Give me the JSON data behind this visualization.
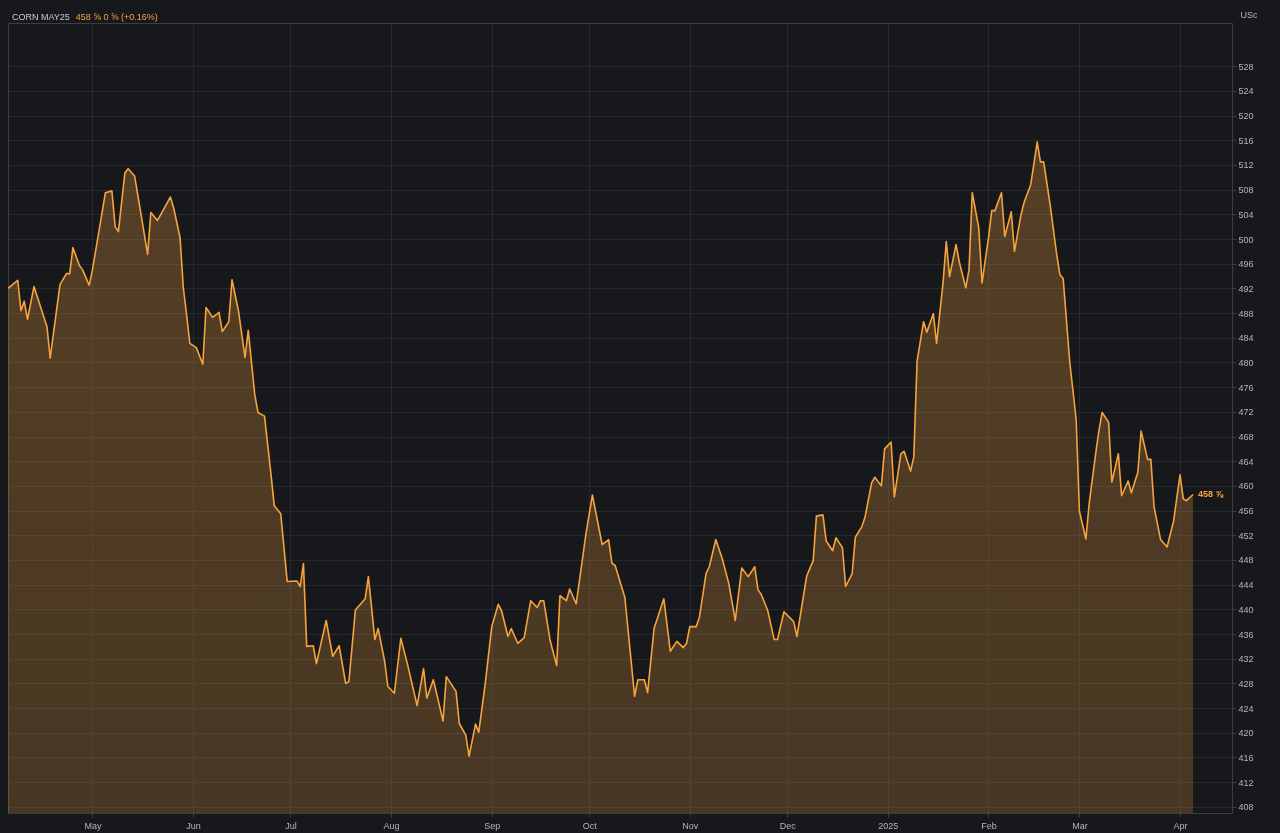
{
  "chart_data": {
    "type": "area",
    "title": "CORN MAY25",
    "subtitle": "458 ⅝ 0 ⅝ (+0.16%)",
    "ylabel": "USc",
    "x": [
      "2024-04-05",
      "2024-04-08",
      "2024-04-09",
      "2024-04-10",
      "2024-04-11",
      "2024-04-13",
      "2024-04-17",
      "2024-04-18",
      "2024-04-21",
      "2024-04-23",
      "2024-04-24",
      "2024-04-25",
      "2024-04-27",
      "2024-04-28",
      "2024-04-30",
      "2024-05-01",
      "2024-05-03",
      "2024-05-05",
      "2024-05-07",
      "2024-05-08",
      "2024-05-09",
      "2024-05-11",
      "2024-05-12",
      "2024-05-14",
      "2024-05-16",
      "2024-05-18",
      "2024-05-19",
      "2024-05-21",
      "2024-05-22",
      "2024-05-25",
      "2024-05-26",
      "2024-05-28",
      "2024-05-29",
      "2024-05-30",
      "2024-05-31",
      "2024-06-02",
      "2024-06-04",
      "2024-06-05",
      "2024-06-07",
      "2024-06-09",
      "2024-06-10",
      "2024-06-12",
      "2024-06-13",
      "2024-06-15",
      "2024-06-17",
      "2024-06-18",
      "2024-06-20",
      "2024-06-21",
      "2024-06-23",
      "2024-06-25",
      "2024-06-26",
      "2024-06-28",
      "2024-06-30",
      "2024-07-03",
      "2024-07-04",
      "2024-07-05",
      "2024-07-06",
      "2024-07-08",
      "2024-07-09",
      "2024-07-12",
      "2024-07-14",
      "2024-07-16",
      "2024-07-18",
      "2024-07-19",
      "2024-07-21",
      "2024-07-24",
      "2024-07-25",
      "2024-07-27",
      "2024-07-28",
      "2024-07-30",
      "2024-07-31",
      "2024-08-02",
      "2024-08-04",
      "2024-08-06",
      "2024-08-09",
      "2024-08-11",
      "2024-08-12",
      "2024-08-14",
      "2024-08-15",
      "2024-08-17",
      "2024-08-18",
      "2024-08-21",
      "2024-08-22",
      "2024-08-24",
      "2024-08-25",
      "2024-08-27",
      "2024-08-28",
      "2024-08-30",
      "2024-09-01",
      "2024-09-03",
      "2024-09-04",
      "2024-09-06",
      "2024-09-07",
      "2024-09-09",
      "2024-09-11",
      "2024-09-13",
      "2024-09-15",
      "2024-09-16",
      "2024-09-17",
      "2024-09-19",
      "2024-09-21",
      "2024-09-22",
      "2024-09-24",
      "2024-09-25",
      "2024-09-27",
      "2024-09-28",
      "2024-09-30",
      "2024-10-02",
      "2024-10-05",
      "2024-10-07",
      "2024-10-08",
      "2024-10-09",
      "2024-10-12",
      "2024-10-15",
      "2024-10-16",
      "2024-10-18",
      "2024-10-19",
      "2024-10-21",
      "2024-10-24",
      "2024-10-26",
      "2024-10-28",
      "2024-10-30",
      "2024-10-31",
      "2024-11-01",
      "2024-11-03",
      "2024-11-04",
      "2024-11-06",
      "2024-11-07",
      "2024-11-09",
      "2024-11-11",
      "2024-11-13",
      "2024-11-15",
      "2024-11-17",
      "2024-11-19",
      "2024-11-21",
      "2024-11-22",
      "2024-11-23",
      "2024-11-25",
      "2024-11-27",
      "2024-11-28",
      "2024-11-30",
      "2024-12-03",
      "2024-12-04",
      "2024-12-07",
      "2024-12-09",
      "2024-12-10",
      "2024-12-12",
      "2024-12-13",
      "2024-12-15",
      "2024-12-16",
      "2024-12-18",
      "2024-12-19",
      "2024-12-21",
      "2024-12-22",
      "2024-12-24",
      "2024-12-25",
      "2024-12-27",
      "2024-12-28",
      "2024-12-30",
      "2024-12-31",
      "2025-01-02",
      "2025-01-03",
      "2025-01-05",
      "2025-01-06",
      "2025-01-08",
      "2025-01-09",
      "2025-01-10",
      "2025-01-12",
      "2025-01-13",
      "2025-01-15",
      "2025-01-16",
      "2025-01-18",
      "2025-01-19",
      "2025-01-20",
      "2025-01-22",
      "2025-01-23",
      "2025-01-25",
      "2025-01-26",
      "2025-01-27",
      "2025-01-29",
      "2025-01-30",
      "2025-02-01",
      "2025-02-02",
      "2025-02-03",
      "2025-02-05",
      "2025-02-06",
      "2025-02-08",
      "2025-02-09",
      "2025-02-11",
      "2025-02-12",
      "2025-02-14",
      "2025-02-16",
      "2025-02-17",
      "2025-02-18",
      "2025-02-20",
      "2025-02-22",
      "2025-02-23",
      "2025-02-24",
      "2025-02-26",
      "2025-02-28",
      "2025-03-01",
      "2025-03-03",
      "2025-03-04",
      "2025-03-06",
      "2025-03-07",
      "2025-03-08",
      "2025-03-10",
      "2025-03-11",
      "2025-03-13",
      "2025-03-14",
      "2025-03-16",
      "2025-03-17",
      "2025-03-19",
      "2025-03-20",
      "2025-03-22",
      "2025-03-23",
      "2025-03-24",
      "2025-03-26",
      "2025-03-28",
      "2025-03-30",
      "2025-04-01",
      "2025-04-02",
      "2025-04-03",
      "2025-04-05"
    ],
    "series": [
      {
        "color": "#f7a33c",
        "values": [
          492.0,
          493.3,
          488.4,
          489.9,
          487.0,
          492.3,
          485.8,
          480.7,
          492.6,
          494.4,
          494.4,
          498.6,
          495.7,
          495.0,
          492.5,
          495.0,
          501.2,
          507.5,
          507.8,
          502.0,
          501.2,
          510.7,
          511.4,
          510.2,
          503.9,
          497.5,
          504.3,
          503.0,
          503.9,
          506.8,
          505.1,
          500.2,
          492.1,
          487.8,
          483.1,
          482.4,
          479.7,
          488.9,
          487.3,
          488.1,
          485.0,
          486.6,
          493.4,
          488.3,
          480.8,
          485.2,
          474.8,
          471.9,
          471.3,
          461.9,
          456.8,
          455.5,
          444.5,
          444.6,
          443.7,
          447.4,
          434.0,
          434.1,
          431.2,
          438.2,
          432.4,
          434.1,
          428.0,
          428.3,
          439.9,
          441.7,
          445.3,
          435.1,
          436.9,
          431.6,
          427.5,
          426.4,
          435.3,
          431.2,
          424.4,
          430.4,
          425.6,
          428.6,
          426.4,
          421.9,
          429.1,
          426.7,
          421.5,
          419.6,
          416.2,
          421.4,
          420.1,
          428.0,
          437.2,
          440.8,
          439.8,
          435.6,
          436.9,
          434.5,
          435.4,
          441.4,
          440.3,
          441.4,
          441.4,
          434.9,
          430.9,
          442.2,
          441.4,
          443.3,
          440.9,
          444.6,
          452.2,
          458.5,
          450.5,
          451.3,
          447.5,
          447.1,
          441.9,
          425.9,
          428.6,
          428.6,
          426.5,
          436.9,
          441.7,
          433.2,
          434.8,
          433.8,
          434.5,
          437.2,
          437.2,
          438.8,
          445.8,
          446.9,
          451.3,
          448.2,
          444.2,
          438.2,
          446.7,
          445.3,
          446.9,
          443.2,
          442.4,
          439.8,
          435.1,
          435.1,
          439.6,
          438.0,
          435.6,
          445.4,
          447.9,
          455.1,
          455.3,
          451.1,
          449.5,
          451.6,
          450.0,
          443.7,
          445.8,
          451.7,
          453.4,
          455.0,
          460.5,
          461.4,
          460.0,
          466.0,
          467.1,
          458.2,
          465.2,
          465.6,
          462.4,
          464.7,
          480.2,
          486.6,
          484.9,
          487.9,
          483.1,
          492.9,
          499.6,
          493.9,
          499.1,
          496.3,
          492.1,
          495.0,
          507.5,
          501.8,
          492.9,
          500.2,
          504.6,
          504.6,
          507.5,
          500.4,
          504.4,
          498.0,
          503.9,
          506.0,
          508.8,
          515.7,
          512.5,
          512.5,
          505.5,
          497.5,
          494.2,
          493.6,
          480.2,
          470.8,
          455.9,
          451.4,
          457.1,
          465.2,
          468.9,
          471.9,
          470.3,
          460.6,
          465.2,
          458.4,
          460.8,
          458.9,
          462.2,
          468.9,
          464.3,
          464.3,
          456.6,
          451.3,
          450.1,
          454.3,
          461.8,
          457.9,
          457.6,
          458.6
        ]
      }
    ],
    "xlim": [
      "2024-04-05",
      "2025-04-17"
    ],
    "xticks": [
      {
        "value": "2024-05-01",
        "label": "May"
      },
      {
        "value": "2024-06-01",
        "label": "Jun"
      },
      {
        "value": "2024-07-01",
        "label": "Jul"
      },
      {
        "value": "2024-08-01",
        "label": "Aug"
      },
      {
        "value": "2024-09-01",
        "label": "Sep"
      },
      {
        "value": "2024-10-01",
        "label": "Oct"
      },
      {
        "value": "2024-11-01",
        "label": "Nov"
      },
      {
        "value": "2024-12-01",
        "label": "Dec"
      },
      {
        "value": "2025-01-01",
        "label": "2025"
      },
      {
        "value": "2025-02-01",
        "label": "Feb"
      },
      {
        "value": "2025-03-01",
        "label": "Mar"
      },
      {
        "value": "2025-04-01",
        "label": "Apr"
      }
    ],
    "ylim": [
      407,
      535
    ],
    "yticks": [
      408,
      412,
      416,
      420,
      424,
      428,
      432,
      436,
      440,
      444,
      448,
      452,
      456,
      460,
      464,
      468,
      472,
      476,
      480,
      484,
      488,
      492,
      496,
      500,
      504,
      508,
      512,
      516,
      520,
      524,
      528
    ],
    "annotations": [
      {
        "text": "458 ⅝",
        "x": "2025-04-05",
        "y": 458.625
      }
    ],
    "grid": true
  }
}
